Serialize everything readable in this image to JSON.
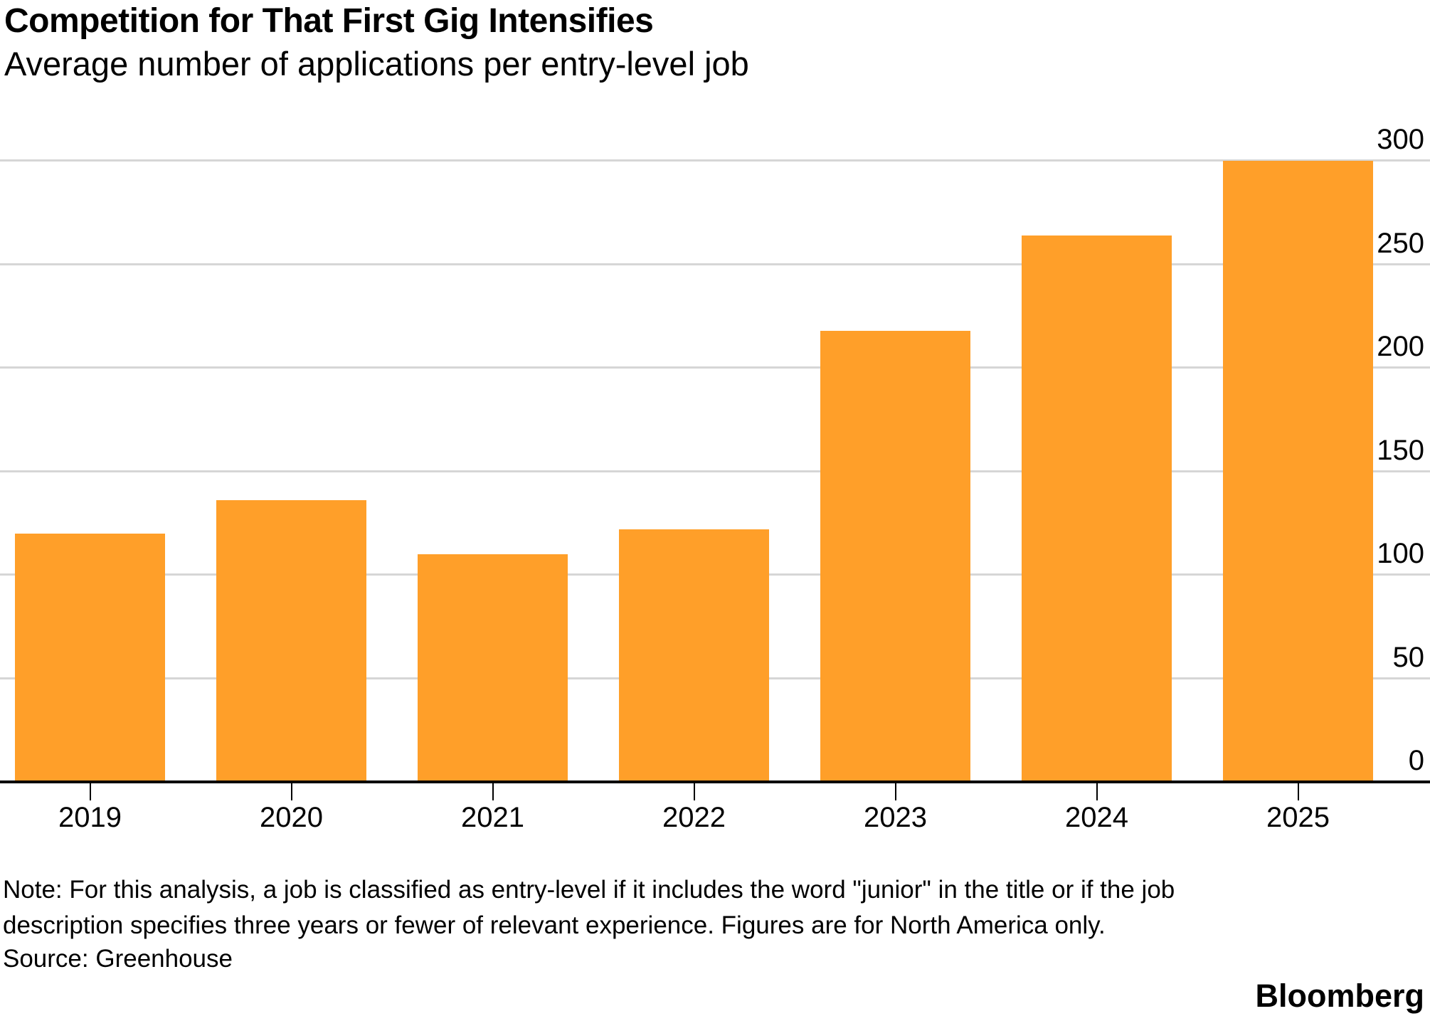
{
  "header": {
    "title": "Competition for That First Gig Intensifies",
    "subtitle": "Average number of applications per entry-level job"
  },
  "chart_data": {
    "type": "bar",
    "categories": [
      "2019",
      "2020",
      "2021",
      "2022",
      "2023",
      "2024",
      "2025"
    ],
    "values": [
      120,
      136,
      110,
      122,
      218,
      264,
      300
    ],
    "title": "Competition for That First Gig Intensifies",
    "subtitle": "Average number of applications per entry-level job",
    "xlabel": "",
    "ylabel": "",
    "ylim": [
      0,
      300
    ],
    "y_ticks": [
      0,
      50,
      100,
      150,
      200,
      250,
      300
    ],
    "grid": "horizontal",
    "y_tick_side": "right",
    "legend": "none"
  },
  "colors": {
    "bar": "#FF9F29",
    "gridline": "#D6D6D6",
    "axis": "#000000",
    "text": "#000000"
  },
  "footer": {
    "note_lines": [
      "Note: For this analysis, a job is classified as entry-level if it includes the word \"junior\" in the title or if the job",
      "description specifies three years or fewer of relevant experience. Figures are for North America only."
    ],
    "source": "Source: Greenhouse",
    "brand": "Bloomberg"
  }
}
